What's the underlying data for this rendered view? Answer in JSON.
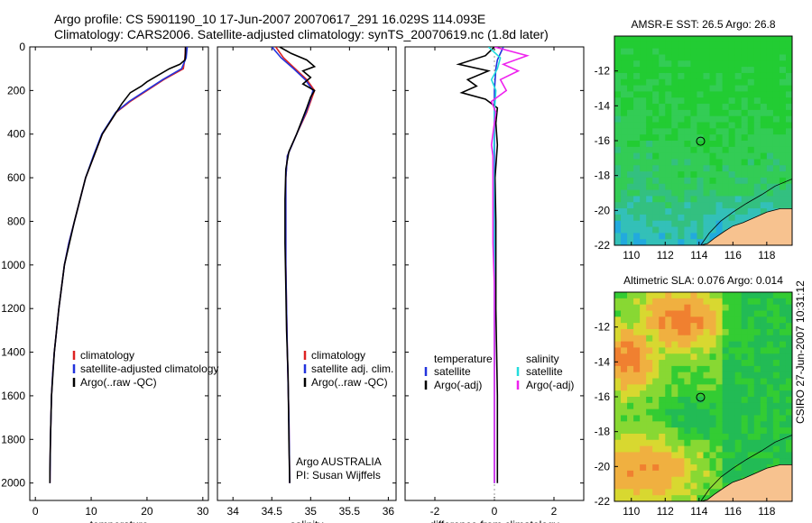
{
  "header": {
    "title_line1": "Argo profile: CS 5901190_10 17-Jun-2007 20070617_291 16.029S 114.093E",
    "title_line2": "Climatology: CARS2006. Satellite-adjusted climatology: synTS_20070619.nc (1.8d later)"
  },
  "credit": "CSIRO 27-Jun-2007 10:31:12",
  "argo_note": {
    "line1": "Argo AUSTRALIA",
    "line2": "PI: Susan Wijffels"
  },
  "colors": {
    "red": "#dd2222",
    "blue": "#2233dd",
    "black": "#000000",
    "cyan": "#22dddd",
    "magenta": "#ee22ee",
    "sand": "#f7c28f"
  },
  "chart_data": [
    {
      "type": "line",
      "id": "temperature",
      "xlabel": "temperature",
      "ylabel": "",
      "xlim": [
        -1,
        31
      ],
      "ylim": [
        2080,
        0
      ],
      "xticks": [
        0,
        10,
        20,
        30
      ],
      "yticks": [
        0,
        200,
        400,
        600,
        800,
        1000,
        1200,
        1400,
        1600,
        1800,
        2000
      ],
      "series": [
        {
          "name": "climatology",
          "color": "#dd2222",
          "x": [
            26.9,
            26.8,
            26.5,
            23,
            20,
            17,
            14.5,
            12,
            10.5,
            9,
            8,
            7,
            6,
            5.2,
            4.7,
            4.2,
            3.8,
            3.4,
            3.1,
            2.9,
            2.7,
            2.6
          ],
          "y": [
            0,
            50,
            100,
            150,
            200,
            250,
            300,
            400,
            500,
            600,
            700,
            800,
            900,
            1000,
            1100,
            1200,
            1300,
            1400,
            1500,
            1600,
            1800,
            2000
          ]
        },
        {
          "name": "satellite-adjusted climatology",
          "color": "#2233dd",
          "x": [
            27.2,
            27,
            26.2,
            22.8,
            19.8,
            16.8,
            14.4,
            11.9,
            10.4,
            9,
            8,
            7,
            6,
            5.2,
            4.7,
            4.2,
            3.8,
            3.4,
            3.1,
            2.9,
            2.7,
            2.6
          ],
          "y": [
            0,
            50,
            100,
            150,
            200,
            250,
            300,
            400,
            500,
            600,
            700,
            800,
            900,
            1000,
            1100,
            1200,
            1300,
            1400,
            1500,
            1600,
            1800,
            2000
          ]
        },
        {
          "name": "Argo(..raw -QC)",
          "color": "#000000",
          "x": [
            26.9,
            26.9,
            26.8,
            25.9,
            24,
            22,
            20,
            19,
            17,
            15.5,
            14.5,
            12,
            10.5,
            9,
            7,
            5.2,
            4.2,
            3.4,
            2.9,
            2.7,
            2.6,
            2.6
          ],
          "y": [
            0,
            30,
            60,
            80,
            100,
            130,
            160,
            180,
            210,
            260,
            300,
            400,
            500,
            600,
            800,
            1000,
            1200,
            1400,
            1600,
            1800,
            1950,
            2000
          ]
        }
      ],
      "legend": [
        "climatology",
        "satellite-adjusted climatology",
        "Argo(..raw -QC)"
      ]
    },
    {
      "type": "line",
      "id": "salinity",
      "xlabel": "salinity",
      "ylabel": "",
      "xlim": [
        33.8,
        36.1
      ],
      "ylim": [
        2080,
        0
      ],
      "xticks": [
        34,
        34.5,
        35,
        35.5,
        36
      ],
      "xticklabels": [
        "34",
        "34.5",
        "35",
        "35.5",
        "36"
      ],
      "yticks": [
        0,
        200,
        400,
        600,
        800,
        1000,
        1200,
        1400,
        1600,
        1800,
        2000
      ],
      "series": [
        {
          "name": "climatology",
          "color": "#dd2222",
          "x": [
            34.55,
            34.65,
            34.8,
            34.95,
            35.05,
            35.0,
            34.95,
            34.82,
            34.7,
            34.68,
            34.68,
            34.68,
            34.69,
            34.7,
            34.72,
            34.73
          ],
          "y": [
            0,
            50,
            100,
            150,
            200,
            250,
            300,
            400,
            500,
            600,
            800,
            1000,
            1200,
            1400,
            1700,
            2000
          ]
        },
        {
          "name": "satellite adj. clim.",
          "color": "#2233dd",
          "x": [
            34.5,
            34.62,
            34.78,
            34.93,
            35.03,
            34.99,
            34.94,
            34.82,
            34.7,
            34.68,
            34.68,
            34.68,
            34.69,
            34.7,
            34.72,
            34.73
          ],
          "y": [
            0,
            50,
            100,
            150,
            200,
            250,
            300,
            400,
            500,
            600,
            800,
            1000,
            1200,
            1400,
            1700,
            2000
          ]
        },
        {
          "name": "Argo(..raw -QC)",
          "color": "#000000",
          "x": [
            34.6,
            34.75,
            34.95,
            35.05,
            34.9,
            35.0,
            34.9,
            35.05,
            35.0,
            34.95,
            34.82,
            34.72,
            34.68,
            34.67,
            34.67,
            34.68,
            34.69,
            34.71,
            34.72,
            34.73
          ],
          "y": [
            0,
            30,
            60,
            90,
            110,
            140,
            170,
            200,
            230,
            280,
            400,
            480,
            560,
            700,
            900,
            1100,
            1300,
            1500,
            1800,
            2000
          ]
        }
      ],
      "legend": [
        "climatology",
        "satellite adj. clim.",
        "Argo(..raw -QC)"
      ]
    },
    {
      "type": "line",
      "id": "difference",
      "xlabel": "difference from climatology",
      "ylabel": "",
      "xlim": [
        -3,
        3
      ],
      "ylim": [
        2080,
        0
      ],
      "xticks": [
        -2,
        0,
        2
      ],
      "yticks": [
        0,
        200,
        400,
        600,
        800,
        1000,
        1200,
        1400,
        1600,
        1800,
        2000
      ],
      "series": [
        {
          "name": "satellite (temperature)",
          "color": "#2233dd",
          "x": [
            0.3,
            0.1,
            0.05,
            0,
            0,
            0,
            0,
            0,
            0,
            0
          ],
          "y": [
            0,
            60,
            100,
            200,
            400,
            800,
            1200,
            1600,
            1800,
            2000
          ]
        },
        {
          "name": "Argo(-adj) (temperature)",
          "color": "#000000",
          "x": [
            0,
            -0.3,
            -1.2,
            -0.2,
            -0.9,
            -0.6,
            -1.1,
            -0.3,
            0.1,
            0.05,
            0.1,
            0.02,
            0.05,
            0.05,
            0.1,
            0.1
          ],
          "y": [
            0,
            40,
            80,
            110,
            150,
            180,
            210,
            240,
            280,
            350,
            450,
            600,
            800,
            1200,
            1600,
            2000
          ]
        },
        {
          "name": "satellite (salinity)",
          "color": "#22dddd",
          "x": [
            -0.2,
            0.2,
            0.1,
            -0.1,
            0.05,
            0,
            -0.02,
            0,
            0,
            0
          ],
          "y": [
            0,
            50,
            100,
            150,
            200,
            300,
            500,
            1000,
            1500,
            2000
          ]
        },
        {
          "name": "Argo(-adj) (salinity)",
          "color": "#ee22ee",
          "x": [
            0,
            1.1,
            0.3,
            0.8,
            0.2,
            0.4,
            -0.1,
            0.05,
            -0.1,
            -0.05,
            -0.05,
            0,
            0,
            0
          ],
          "y": [
            0,
            40,
            80,
            110,
            150,
            200,
            250,
            300,
            450,
            500,
            900,
            1100,
            1500,
            2000
          ]
        }
      ],
      "legend_columns": [
        {
          "heading": "temperature",
          "items": [
            {
              "label": "satellite",
              "color": "#2233dd"
            },
            {
              "label": "Argo(-adj)",
              "color": "#000000"
            }
          ]
        },
        {
          "heading": "salinity",
          "items": [
            {
              "label": "satellite",
              "color": "#22dddd"
            },
            {
              "label": "Argo(-adj)",
              "color": "#ee22ee"
            }
          ]
        }
      ]
    },
    {
      "type": "heatmap",
      "id": "sst_map",
      "title": "AMSR-E SST: 26.5 Argo: 26.8",
      "xlim": [
        109,
        119.5
      ],
      "ylim": [
        -22,
        -10
      ],
      "xticks": [
        110,
        112,
        114,
        116,
        118
      ],
      "yticks": [
        -12,
        -14,
        -16,
        -18,
        -20,
        -22
      ],
      "marker": {
        "lon": 114.09,
        "lat": -16.03
      }
    },
    {
      "type": "heatmap",
      "id": "sla_map",
      "title": "Altimetric SLA: 0.076 Argo: 0.014",
      "xlim": [
        109,
        119.5
      ],
      "ylim": [
        -22,
        -10
      ],
      "xticks": [
        110,
        112,
        114,
        116,
        118
      ],
      "yticks": [
        -12,
        -14,
        -16,
        -18,
        -20,
        -22
      ],
      "marker": {
        "lon": 114.09,
        "lat": -16.03
      }
    }
  ]
}
